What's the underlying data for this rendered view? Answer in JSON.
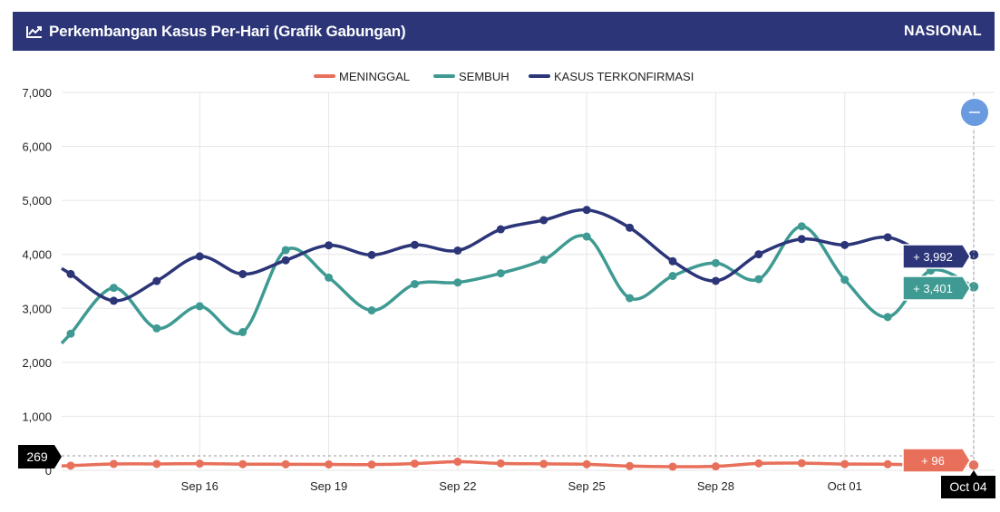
{
  "header": {
    "title": "Perkembangan Kasus Per-Hari (Grafik Gabungan)",
    "region": "NASIONAL",
    "icon": "trend-line-icon"
  },
  "zoom_button": {
    "icon": "minus-icon",
    "color": "#6a9be0"
  },
  "chart_data": {
    "type": "line",
    "legend_position": "top-center",
    "grid": true,
    "ylim": [
      0,
      7000
    ],
    "y_ticks": [
      "0",
      "1,000",
      "2,000",
      "3,000",
      "4,000",
      "5,000",
      "6,000",
      "7,000"
    ],
    "x_ticks": [
      {
        "label": "Sep 16",
        "date": "2020-09-16"
      },
      {
        "label": "Sep 19",
        "date": "2020-09-19"
      },
      {
        "label": "Sep 22",
        "date": "2020-09-22"
      },
      {
        "label": "Sep 25",
        "date": "2020-09-25"
      },
      {
        "label": "Sep 28",
        "date": "2020-09-28"
      },
      {
        "label": "Oct 01",
        "date": "2020-10-01"
      },
      {
        "label": "Oct 04",
        "date": "2020-10-04"
      }
    ],
    "x_range": [
      "2020-09-13",
      "2020-10-04"
    ],
    "x": [
      "2020-09-13",
      "2020-09-14",
      "2020-09-15",
      "2020-09-16",
      "2020-09-17",
      "2020-09-18",
      "2020-09-19",
      "2020-09-20",
      "2020-09-21",
      "2020-09-22",
      "2020-09-23",
      "2020-09-24",
      "2020-09-25",
      "2020-09-26",
      "2020-09-27",
      "2020-09-28",
      "2020-09-29",
      "2020-09-30",
      "2020-10-01",
      "2020-10-02",
      "2020-10-03",
      "2020-10-04"
    ],
    "series": [
      {
        "name": "MENINGGAL",
        "color": "#e8705a",
        "values": [
          87,
          118,
          118,
          124,
          114,
          112,
          110,
          106,
          124,
          160,
          128,
          119,
          112,
          79,
          68,
          73,
          128,
          133,
          116,
          113,
          96,
          96
        ]
      },
      {
        "name": "SEMBUH",
        "color": "#3e9a92",
        "values": [
          2531,
          3380,
          2630,
          3040,
          2560,
          4080,
          3570,
          2962,
          3450,
          3480,
          3650,
          3900,
          4330,
          3190,
          3600,
          3840,
          3540,
          4520,
          3530,
          2840,
          3700,
          3401
        ]
      },
      {
        "name": "KASUS TERKONFIRMASI",
        "color": "#2b3578",
        "values": [
          3636,
          3141,
          3507,
          3963,
          3635,
          3891,
          4168,
          3989,
          4176,
          4071,
          4465,
          4634,
          4823,
          4494,
          3873,
          3509,
          4002,
          4284,
          4174,
          4317,
          3992,
          3992
        ]
      }
    ],
    "crosshair": {
      "x": "2020-10-04",
      "x_label": "Oct 04",
      "y": 269,
      "y_label": "269"
    },
    "tooltips": [
      {
        "series": "KASUS TERKONFIRMASI",
        "text": "+ 3,992",
        "value": 3992
      },
      {
        "series": "SEMBUH",
        "text": "+ 3,401",
        "value": 3401
      },
      {
        "series": "MENINGGAL",
        "text": "+ 96",
        "value": 96
      }
    ]
  }
}
